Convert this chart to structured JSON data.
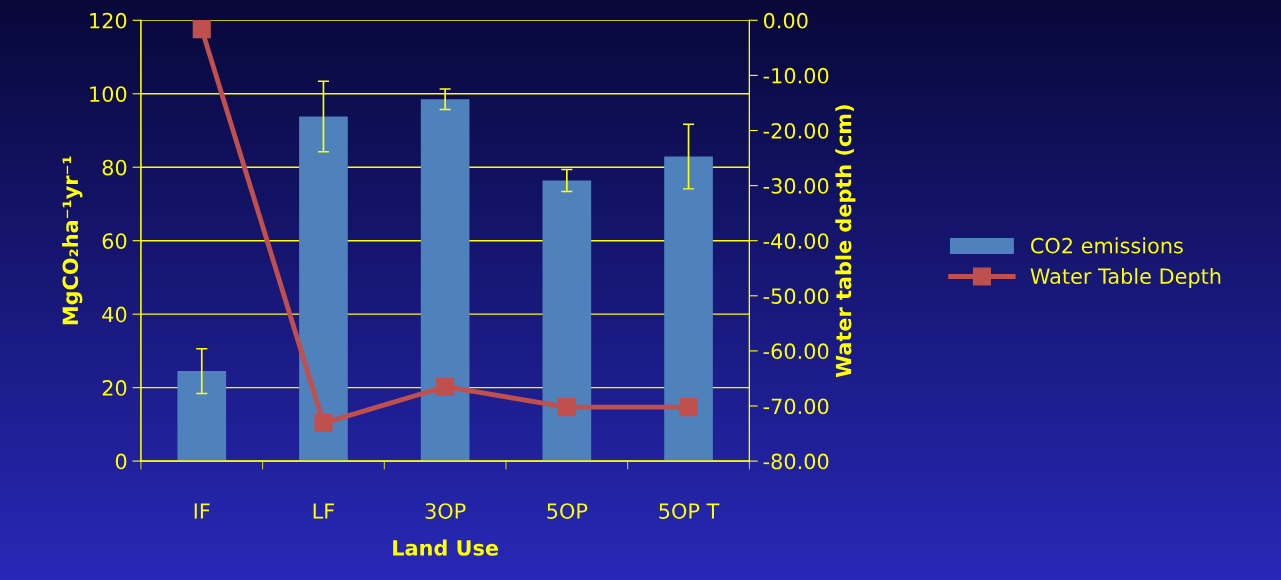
{
  "chart_data": {
    "type": "bar",
    "categories": [
      "IF",
      "LF",
      "3OP",
      "5OP",
      "5OP T"
    ],
    "xlabel": "Land Use",
    "ylabel": "MgCO₂ha⁻¹yr⁻¹",
    "y2label": "Water table depth (cm)",
    "series": [
      {
        "name": "CO2 emissions",
        "color": "#4f81bd",
        "values": [
          24.5,
          93.8,
          98.5,
          76.4,
          82.9
        ],
        "errors": [
          6.1,
          9.6,
          2.8,
          3.0,
          8.8
        ]
      },
      {
        "name": "Water Table Depth",
        "type": "line",
        "axis": "y2",
        "color": "#c0504d",
        "values": [
          -1.6,
          -73.1,
          -66.5,
          -70.2,
          -70.2
        ]
      }
    ],
    "ylim": [
      0,
      120
    ],
    "yticks": [
      0,
      20,
      40,
      60,
      80,
      100,
      120
    ],
    "y2lim": [
      -80,
      0
    ],
    "y2ticks": [
      {
        "value": -80,
        "label": "-80.00"
      },
      {
        "value": -70,
        "label": "-70.00"
      },
      {
        "value": -60,
        "label": "-60.00"
      },
      {
        "value": -50,
        "label": "-50.00"
      },
      {
        "value": -40,
        "label": "-40.00"
      },
      {
        "value": -30,
        "label": "-30.00"
      },
      {
        "value": -20,
        "label": "-20.00"
      },
      {
        "value": -10,
        "label": "-10.00"
      },
      {
        "value": 0,
        "label": "0.00"
      }
    ],
    "grid": "y",
    "legend": "right",
    "marker": "square",
    "line_style": "solid"
  }
}
